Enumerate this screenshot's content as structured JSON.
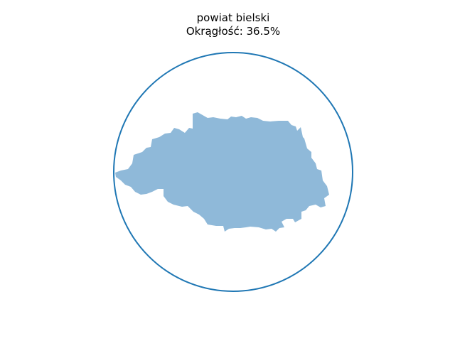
{
  "title": {
    "line1": "powiat bielski",
    "line2": "Okrągłość: 36.5%"
  },
  "shape": {
    "name": "powiat bielski",
    "fill_color": "#8fb9d9",
    "circularity_percent": 36.5
  },
  "circle": {
    "stroke_color": "#1f77b4"
  }
}
